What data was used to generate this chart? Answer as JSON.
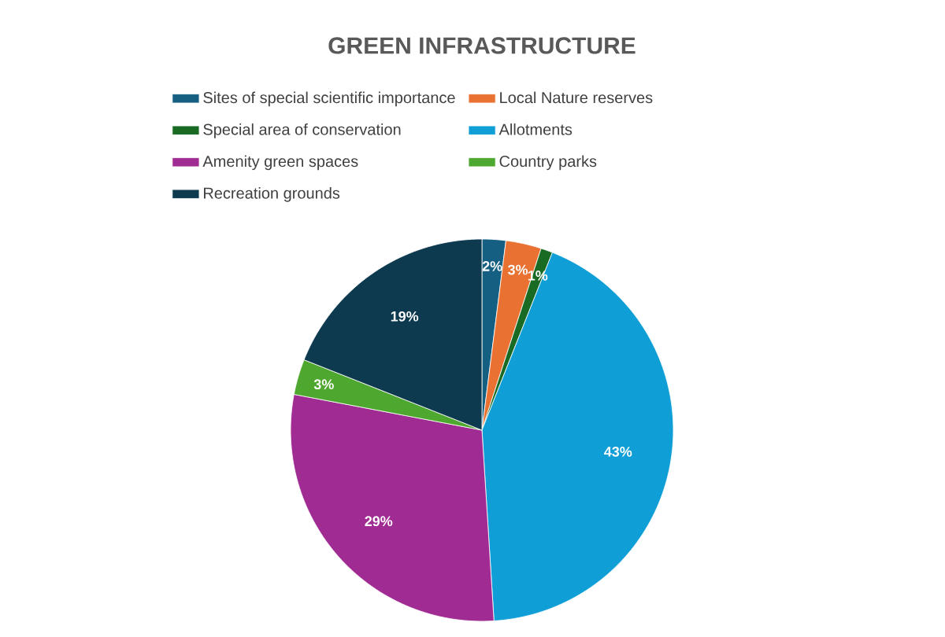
{
  "chart_data": {
    "type": "pie",
    "title": "GREEN INFRASTRUCTURE",
    "categories": [
      "Sites of special scientific importance",
      "Local Nature reserves",
      "Special area of conservation",
      "Allotments",
      "Amenity green spaces",
      "Country parks",
      "Recreation grounds"
    ],
    "values": [
      2,
      3,
      1,
      43,
      29,
      3,
      19
    ],
    "value_labels": [
      "2%",
      "3%",
      "1%",
      "43%",
      "29%",
      "3%",
      "19%"
    ],
    "colors": [
      "#156082",
      "#E97132",
      "#196B24",
      "#0F9ED5",
      "#A02B93",
      "#4EA72E",
      "#0E3A50"
    ],
    "legend": "top"
  }
}
